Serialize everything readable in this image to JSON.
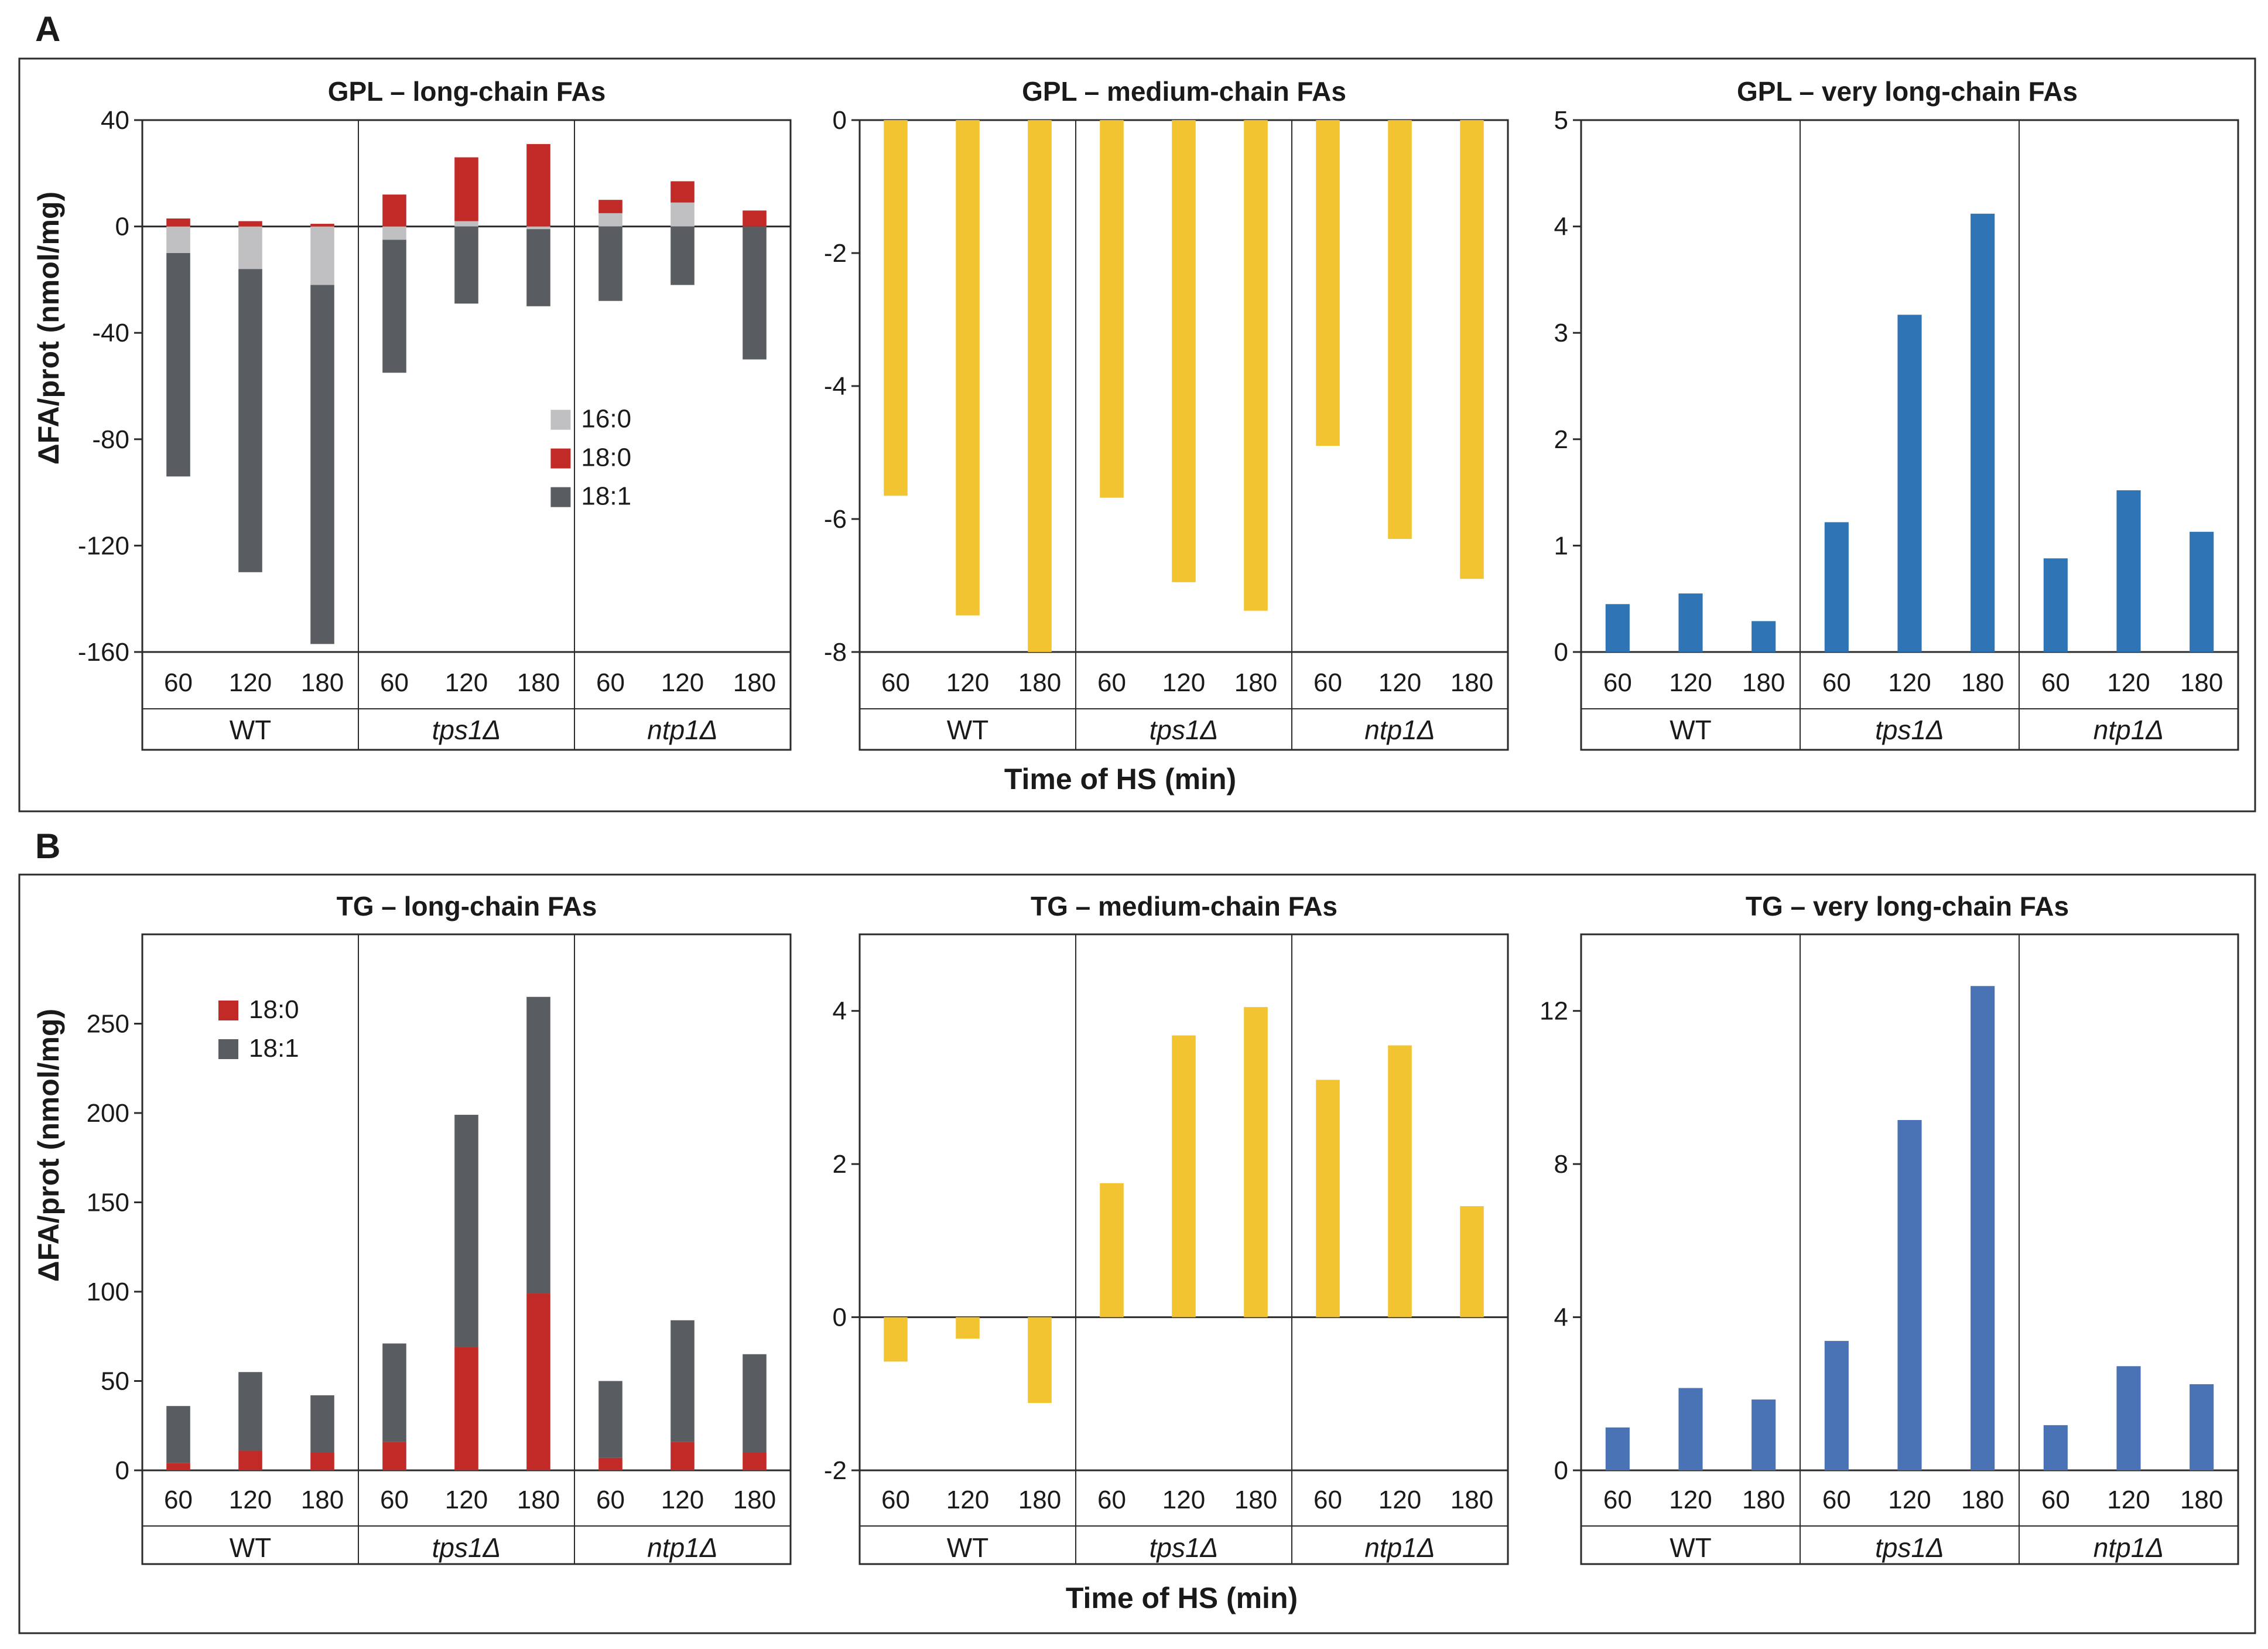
{
  "panels": [
    {
      "letter": "A",
      "ylabel": "ΔFA/prot (nmol/mg)",
      "xlabel": "Time of HS (min)",
      "charts": [
        {
          "id": "a1",
          "title": "GPL – long-chain FAs",
          "type": "bar-stacked",
          "ylim": [
            -160,
            40
          ],
          "yticks": [
            40,
            0,
            -40,
            -80,
            -120,
            -160
          ],
          "categories": [
            "60",
            "120",
            "180",
            "60",
            "120",
            "180",
            "60",
            "120",
            "180"
          ],
          "groups": [
            "WT",
            "tps1Δ",
            "ntp1Δ"
          ],
          "series": [
            {
              "name": "16:0",
              "color": "#c0c0c2",
              "values": [
                -10,
                -16,
                -22,
                -5,
                2,
                -1,
                5,
                9,
                0
              ]
            },
            {
              "name": "18:0",
              "color": "#c12a27",
              "values": [
                3,
                2,
                1,
                12,
                24,
                31,
                5,
                8,
                6
              ]
            },
            {
              "name": "18:1",
              "color": "#595d61",
              "values": [
                -84,
                -114,
                -135,
                -50,
                -29,
                -29,
                -28,
                -22,
                -50
              ]
            }
          ],
          "legend": {
            "position": "right-middle",
            "entries": [
              "16:0",
              "18:0",
              "18:1"
            ]
          }
        },
        {
          "id": "a2",
          "title": "GPL – medium-chain FAs",
          "type": "bar",
          "ylim": [
            -8,
            0
          ],
          "yticks": [
            0,
            -2,
            -4,
            -6,
            -8
          ],
          "categories": [
            "60",
            "120",
            "180",
            "60",
            "120",
            "180",
            "60",
            "120",
            "180"
          ],
          "groups": [
            "WT",
            "tps1Δ",
            "ntp1Δ"
          ],
          "color": "#f3c431",
          "values": [
            -5.65,
            -7.45,
            -8.0,
            -5.68,
            -6.95,
            -7.38,
            -4.9,
            -6.3,
            -6.9
          ]
        },
        {
          "id": "a3",
          "title": "GPL – very long-chain FAs",
          "type": "bar",
          "ylim": [
            0,
            5
          ],
          "yticks": [
            5,
            4,
            3,
            2,
            1,
            0
          ],
          "categories": [
            "60",
            "120",
            "180",
            "60",
            "120",
            "180",
            "60",
            "120",
            "180"
          ],
          "groups": [
            "WT",
            "tps1Δ",
            "ntp1Δ"
          ],
          "color": "#2f74b5",
          "values": [
            0.45,
            0.55,
            0.29,
            1.22,
            3.17,
            4.12,
            0.88,
            1.52,
            1.13
          ]
        }
      ]
    },
    {
      "letter": "B",
      "ylabel": "ΔFA/prot (nmol/mg)",
      "xlabel": "Time of HS (min)",
      "charts": [
        {
          "id": "b1",
          "title": "TG – long-chain FAs",
          "type": "bar-stacked",
          "ylim": [
            0,
            300
          ],
          "yticks": [
            250,
            200,
            150,
            100,
            50,
            0
          ],
          "categories": [
            "60",
            "120",
            "180",
            "60",
            "120",
            "180",
            "60",
            "120",
            "180"
          ],
          "groups": [
            "WT",
            "tps1Δ",
            "ntp1Δ"
          ],
          "series": [
            {
              "name": "18:0",
              "color": "#c12a27",
              "values": [
                4,
                11,
                10,
                16,
                69,
                99,
                7,
                16,
                10
              ]
            },
            {
              "name": "18:1",
              "color": "#595d61",
              "values": [
                32,
                44,
                32,
                55,
                130,
                166,
                43,
                68,
                55
              ]
            }
          ],
          "legend": {
            "position": "top-left",
            "entries": [
              "18:0",
              "18:1"
            ]
          }
        },
        {
          "id": "b2",
          "title": "TG – medium-chain FAs",
          "type": "bar",
          "ylim": [
            -2,
            5
          ],
          "yticks": [
            4,
            2,
            0,
            -2
          ],
          "categories": [
            "60",
            "120",
            "180",
            "60",
            "120",
            "180",
            "60",
            "120",
            "180"
          ],
          "groups": [
            "WT",
            "tps1Δ",
            "ntp1Δ"
          ],
          "color": "#f3c431",
          "values": [
            -0.58,
            -0.28,
            -1.12,
            1.75,
            3.68,
            4.05,
            3.1,
            3.55,
            1.45
          ]
        },
        {
          "id": "b3",
          "title": "TG – very long-chain FAs",
          "type": "bar",
          "ylim": [
            0,
            14
          ],
          "yticks": [
            12,
            8,
            4,
            0
          ],
          "categories": [
            "60",
            "120",
            "180",
            "60",
            "120",
            "180",
            "60",
            "120",
            "180"
          ],
          "groups": [
            "WT",
            "tps1Δ",
            "ntp1Δ"
          ],
          "color": "#4a73b6",
          "values": [
            1.12,
            2.15,
            1.85,
            3.38,
            9.15,
            12.65,
            1.18,
            2.72,
            2.25
          ]
        }
      ]
    }
  ]
}
